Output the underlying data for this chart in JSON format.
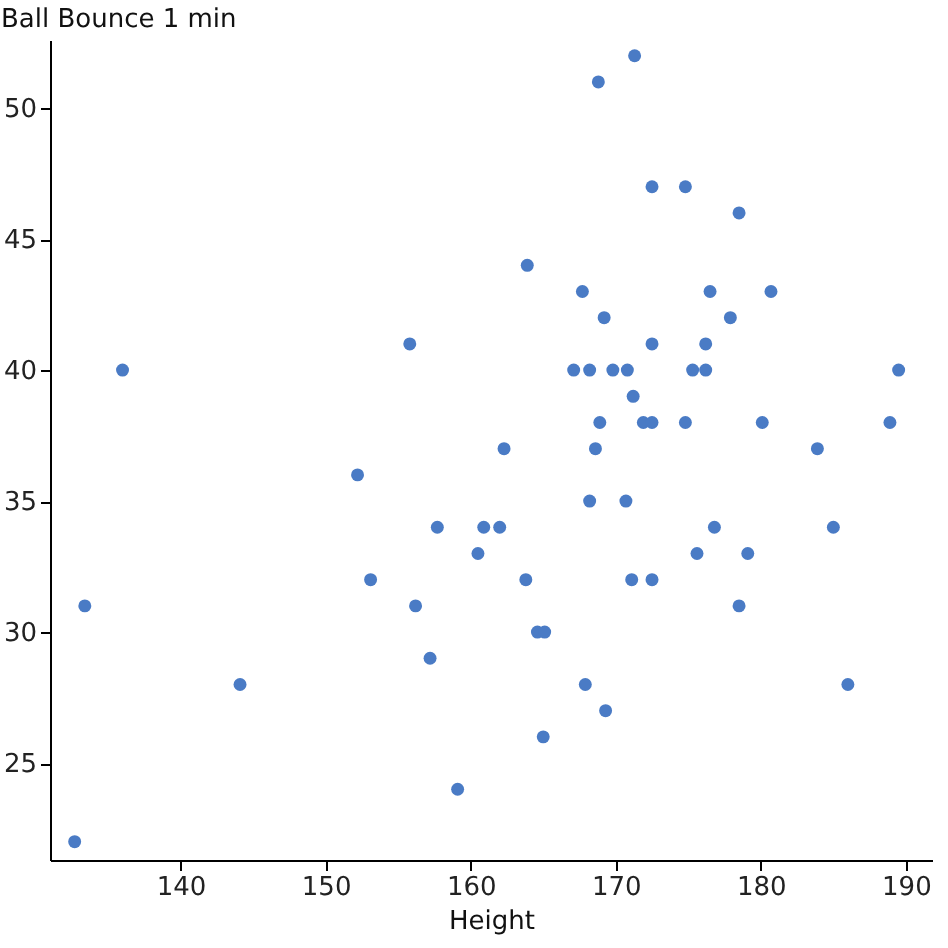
{
  "chart_data": {
    "type": "scatter",
    "xlabel": "Height",
    "ylabel": "Ball Bounce 1 min",
    "x": [
      132.7,
      133.4,
      136.0,
      144.1,
      152.2,
      153.1,
      155.8,
      156.2,
      157.2,
      157.7,
      159.1,
      160.5,
      160.9,
      162.0,
      162.3,
      163.8,
      163.9,
      164.6,
      165.1,
      165.0,
      167.7,
      167.1,
      167.9,
      168.2,
      168.2,
      168.6,
      168.8,
      168.9,
      169.2,
      169.3,
      169.8,
      170.7,
      170.8,
      171.3,
      171.2,
      171.1,
      171.9,
      172.5,
      172.5,
      172.5,
      172.5,
      174.8,
      174.8,
      175.3,
      175.6,
      176.2,
      176.2,
      176.5,
      176.8,
      177.9,
      178.5,
      178.5,
      179.1,
      180.1,
      180.7,
      183.9,
      185.0,
      186.0,
      188.9,
      189.5
    ],
    "values": [
      22,
      31,
      40,
      28,
      36,
      32,
      41,
      31,
      29,
      34,
      24,
      33,
      34,
      34,
      37,
      32,
      44,
      30,
      30,
      26,
      43,
      40,
      28,
      35,
      40,
      37,
      51,
      38,
      42,
      27,
      40,
      35,
      40,
      52,
      39,
      32,
      38,
      47,
      41,
      38,
      32,
      47,
      38,
      40,
      33,
      41,
      40,
      43,
      34,
      42,
      46,
      31,
      33,
      38,
      43,
      37,
      34,
      28,
      38,
      40
    ],
    "color": "#4a7bc5",
    "marker": "circle",
    "grid": false,
    "xlim": [
      131,
      191.8
    ],
    "ylim": [
      21.3,
      52.6
    ],
    "xticks": [
      140,
      150,
      160,
      170,
      180,
      190
    ],
    "yticks": [
      25,
      30,
      35,
      40,
      45,
      50
    ]
  }
}
